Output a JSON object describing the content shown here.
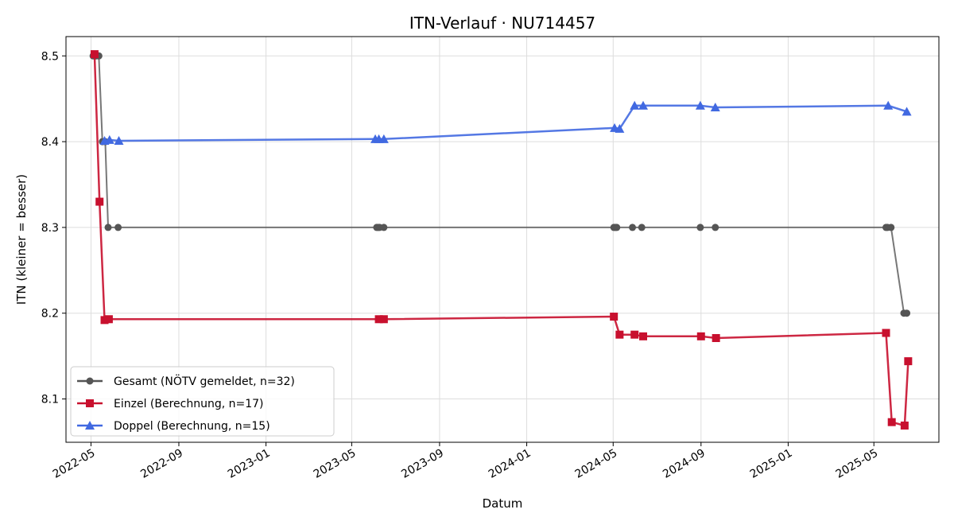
{
  "chart_data": {
    "type": "line",
    "title": "ITN-Verlauf · NU714457",
    "xlabel": "Datum",
    "ylabel": "ITN  (kleiner = besser)",
    "x_axis_type": "date",
    "xlim": [
      "2022-03-27",
      "2025-07-31"
    ],
    "ylim": [
      8.0495,
      8.5225
    ],
    "x_ticks": [
      "2022-05-01",
      "2022-09-01",
      "2023-01-01",
      "2023-05-01",
      "2023-09-01",
      "2024-01-01",
      "2024-05-01",
      "2024-09-01",
      "2025-01-01",
      "2025-05-01"
    ],
    "x_tick_labels": [
      "2022-05",
      "2022-09",
      "2023-01",
      "2023-05",
      "2023-09",
      "2024-01",
      "2024-05",
      "2024-09",
      "2025-01",
      "2025-05"
    ],
    "y_ticks": [
      8.1,
      8.2,
      8.3,
      8.4,
      8.5
    ],
    "y_tick_labels": [
      "8.1",
      "8.2",
      "8.3",
      "8.4",
      "8.5"
    ],
    "grid": true,
    "legend_position": "lower-left",
    "series": [
      {
        "name": "Gesamt (NÖTV gemeldet, n=32)",
        "color": "#555555",
        "marker": "circle",
        "x": [
          "2022-05-04",
          "2022-05-08",
          "2022-05-12",
          "2022-05-17",
          "2022-05-21",
          "2022-05-25",
          "2022-06-08",
          "2023-06-05",
          "2023-06-07",
          "2023-06-09",
          "2023-06-15",
          "2024-05-02",
          "2024-05-04",
          "2024-05-06",
          "2024-05-28",
          "2024-06-10",
          "2024-08-31",
          "2024-09-21",
          "2025-05-18",
          "2025-05-20",
          "2025-05-25",
          "2025-06-12",
          "2025-06-16"
        ],
        "values": [
          8.5,
          8.5,
          8.5,
          8.4,
          8.4,
          8.3,
          8.3,
          8.3,
          8.3,
          8.3,
          8.3,
          8.3,
          8.3,
          8.3,
          8.3,
          8.3,
          8.3,
          8.3,
          8.3,
          8.3,
          8.3,
          8.2,
          8.2
        ]
      },
      {
        "name": "Einzel (Berechnung, n=17)",
        "color": "#c8102e",
        "marker": "square",
        "x": [
          "2022-05-06",
          "2022-05-13",
          "2022-05-20",
          "2022-05-26",
          "2023-06-08",
          "2023-06-15",
          "2024-05-02",
          "2024-05-10",
          "2024-05-31",
          "2024-06-12",
          "2024-09-01",
          "2024-09-22",
          "2025-05-18",
          "2025-05-26",
          "2025-06-13",
          "2025-06-18"
        ],
        "values": [
          8.502,
          8.33,
          8.192,
          8.193,
          8.193,
          8.193,
          8.196,
          8.175,
          8.175,
          8.173,
          8.173,
          8.171,
          8.177,
          8.073,
          8.069,
          8.144
        ]
      },
      {
        "name": "Doppel (Berechnung, n=15)",
        "color": "#4169e1",
        "marker": "triangle",
        "x": [
          "2022-05-20",
          "2022-05-27",
          "2022-06-09",
          "2023-06-03",
          "2023-06-08",
          "2023-06-15",
          "2024-05-03",
          "2024-05-10",
          "2024-05-31",
          "2024-06-12",
          "2024-08-31",
          "2024-09-21",
          "2025-05-21",
          "2025-06-16"
        ],
        "values": [
          8.401,
          8.402,
          8.401,
          8.403,
          8.403,
          8.403,
          8.416,
          8.415,
          8.442,
          8.442,
          8.442,
          8.44,
          8.442,
          8.435
        ]
      }
    ]
  }
}
